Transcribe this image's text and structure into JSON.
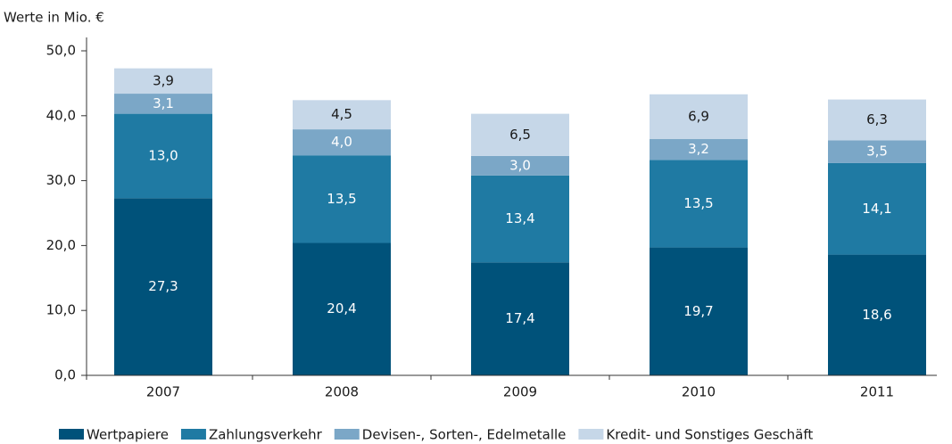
{
  "chart_data": {
    "type": "stacked_bar",
    "y_label": "Werte in Mio. €",
    "categories": [
      "2007",
      "2008",
      "2009",
      "2010",
      "2011"
    ],
    "series": [
      {
        "name": "Wertpapiere",
        "color": "#00527a",
        "label_color": "#ffffff",
        "values": [
          27.3,
          20.4,
          17.4,
          19.7,
          18.6
        ],
        "value_labels": [
          "27,3",
          "20,4",
          "17,4",
          "19,7",
          "18,6"
        ]
      },
      {
        "name": "Zahlungsverkehr",
        "color": "#1f7aa3",
        "label_color": "#ffffff",
        "values": [
          13.0,
          13.5,
          13.4,
          13.5,
          14.1
        ],
        "value_labels": [
          "13,0",
          "13,5",
          "13,4",
          "13,5",
          "14,1"
        ]
      },
      {
        "name": "Devisen-, Sorten-, Edelmetalle",
        "color": "#7ba7c7",
        "label_color": "#ffffff",
        "values": [
          3.1,
          4.0,
          3.0,
          3.2,
          3.5
        ],
        "value_labels": [
          "3,1",
          "4,0",
          "3,0",
          "3,2",
          "3,5"
        ]
      },
      {
        "name": "Kredit- und Sonstiges Geschäft",
        "color": "#c6d7e8",
        "label_color": "#1a1a1a",
        "values": [
          3.9,
          4.5,
          6.5,
          6.9,
          6.3
        ],
        "value_labels": [
          "3,9",
          "4,5",
          "6,5",
          "6,9",
          "6,3"
        ]
      }
    ],
    "ylim": [
      0,
      50
    ],
    "yticks": [
      {
        "value": 0,
        "label": "0,0"
      },
      {
        "value": 10,
        "label": "10,0"
      },
      {
        "value": 20,
        "label": "20,0"
      },
      {
        "value": 30,
        "label": "30,0"
      },
      {
        "value": 40,
        "label": "40,0"
      },
      {
        "value": 50,
        "label": "50,0"
      }
    ]
  }
}
